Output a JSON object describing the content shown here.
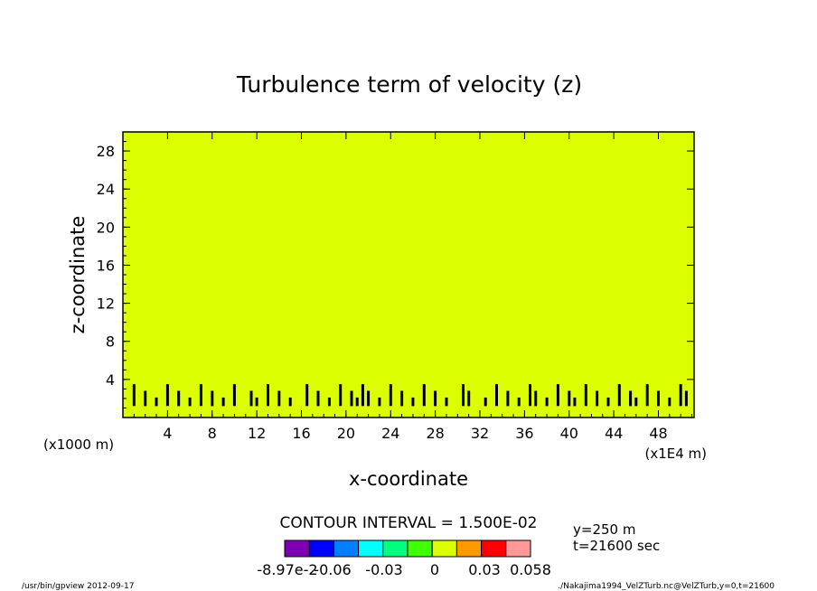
{
  "chart_data": {
    "type": "heatmap",
    "title": "Turbulence term of velocity (z)",
    "xlabel": "x-coordinate",
    "ylabel": "z-coordinate",
    "x_unit_left": "(x1000 m)",
    "x_unit_right": "(x1E4 m)",
    "xlim": [
      0,
      51.2
    ],
    "ylim": [
      0,
      30
    ],
    "x_ticks": [
      4,
      8,
      12,
      16,
      20,
      24,
      28,
      32,
      36,
      40,
      44,
      48
    ],
    "y_ticks": [
      4,
      8,
      12,
      16,
      20,
      24,
      28
    ],
    "background_value": 0,
    "background_color": "#dcff00",
    "turbulent_layer_top_z": 3.5,
    "cells_x": [
      1,
      2,
      3,
      4,
      5,
      6,
      7,
      8,
      9,
      10,
      11.5,
      12,
      13,
      14,
      15,
      16.5,
      17.5,
      18.5,
      19.5,
      20.5,
      21,
      21.5,
      22,
      23,
      24,
      25,
      26,
      27,
      28,
      29,
      30.5,
      31,
      32.5,
      33.5,
      34.5,
      35.5,
      36.5,
      37,
      38,
      39,
      40,
      40.5,
      41.5,
      42.5,
      43.5,
      44.5,
      45.5,
      46,
      47,
      48,
      49,
      50,
      50.5
    ],
    "contour_interval_label": "CONTOUR INTERVAL = 1.500E-02",
    "colorbar": {
      "colors": [
        "#7f00b2",
        "#0000ff",
        "#007fff",
        "#00ffff",
        "#00ff7f",
        "#40ff00",
        "#dcff00",
        "#ff9900",
        "#ff0000",
        "#ff9999"
      ],
      "labels": [
        "-8.97e-2",
        "-0.06",
        "-0.03",
        "0",
        "0.03",
        "0.058"
      ]
    },
    "info_y": "y=250 m",
    "info_t": "t=21600 sec"
  },
  "footer": {
    "left": "/usr/bin/gpview   2012-09-17",
    "right": "./Nakajima1994_VelZTurb.nc@VelZTurb,y=0,t=21600"
  }
}
